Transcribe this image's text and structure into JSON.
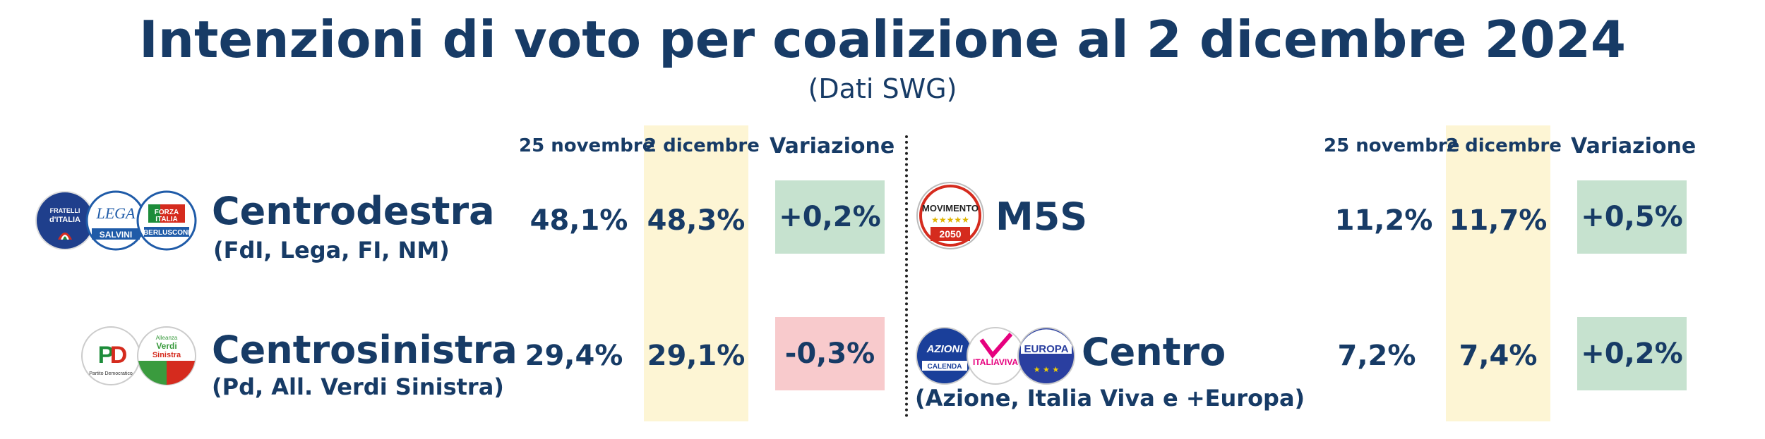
{
  "chart_data": {
    "type": "table",
    "title": "Intenzioni di voto per coalizione al 2 dicembre 2024",
    "subtitle": "(Dati SWG)",
    "columns": [
      "25 novembre",
      "2 dicembre",
      "Variazione"
    ],
    "rows": [
      {
        "name": "Centrodestra",
        "detail": "(FdI, Lega, FI, NM)",
        "prev": "48,1%",
        "curr": "48,3%",
        "change": "+0,2%"
      },
      {
        "name": "Centrosinistra",
        "detail": "(Pd, All. Verdi Sinistra)",
        "prev": "29,4%",
        "curr": "29,1%",
        "change": "-0,3%"
      },
      {
        "name": "M5S",
        "detail": "",
        "prev": "11,2%",
        "curr": "11,7%",
        "change": "+0,5%"
      },
      {
        "name": "Centro",
        "detail": "(Azione, Italia Viva e +Europa)",
        "prev": "7,2%",
        "curr": "7,4%",
        "change": "+0,2%"
      }
    ]
  },
  "colors": {
    "text": "#173b66",
    "highlight": "#fdf5d4",
    "positive": "#c6e2cf",
    "negative": "#f8cacc"
  },
  "logos": {
    "fdi": "FRATELLI D'ITALIA",
    "lega": "LEGA",
    "lega_sub": "SALVINI",
    "fi": "FORZA ITALIA",
    "fi_sub": "BERLUSCONI",
    "pd": "PD",
    "avs": "Alleanza Verdi Sinistra",
    "m5s": "MOVIMENTO",
    "m5s_sub": "2050",
    "azione": "AZIONI",
    "azione_sub": "CALENDA",
    "iv": "ITALIAVIVA",
    "europa": "EUROPA"
  }
}
